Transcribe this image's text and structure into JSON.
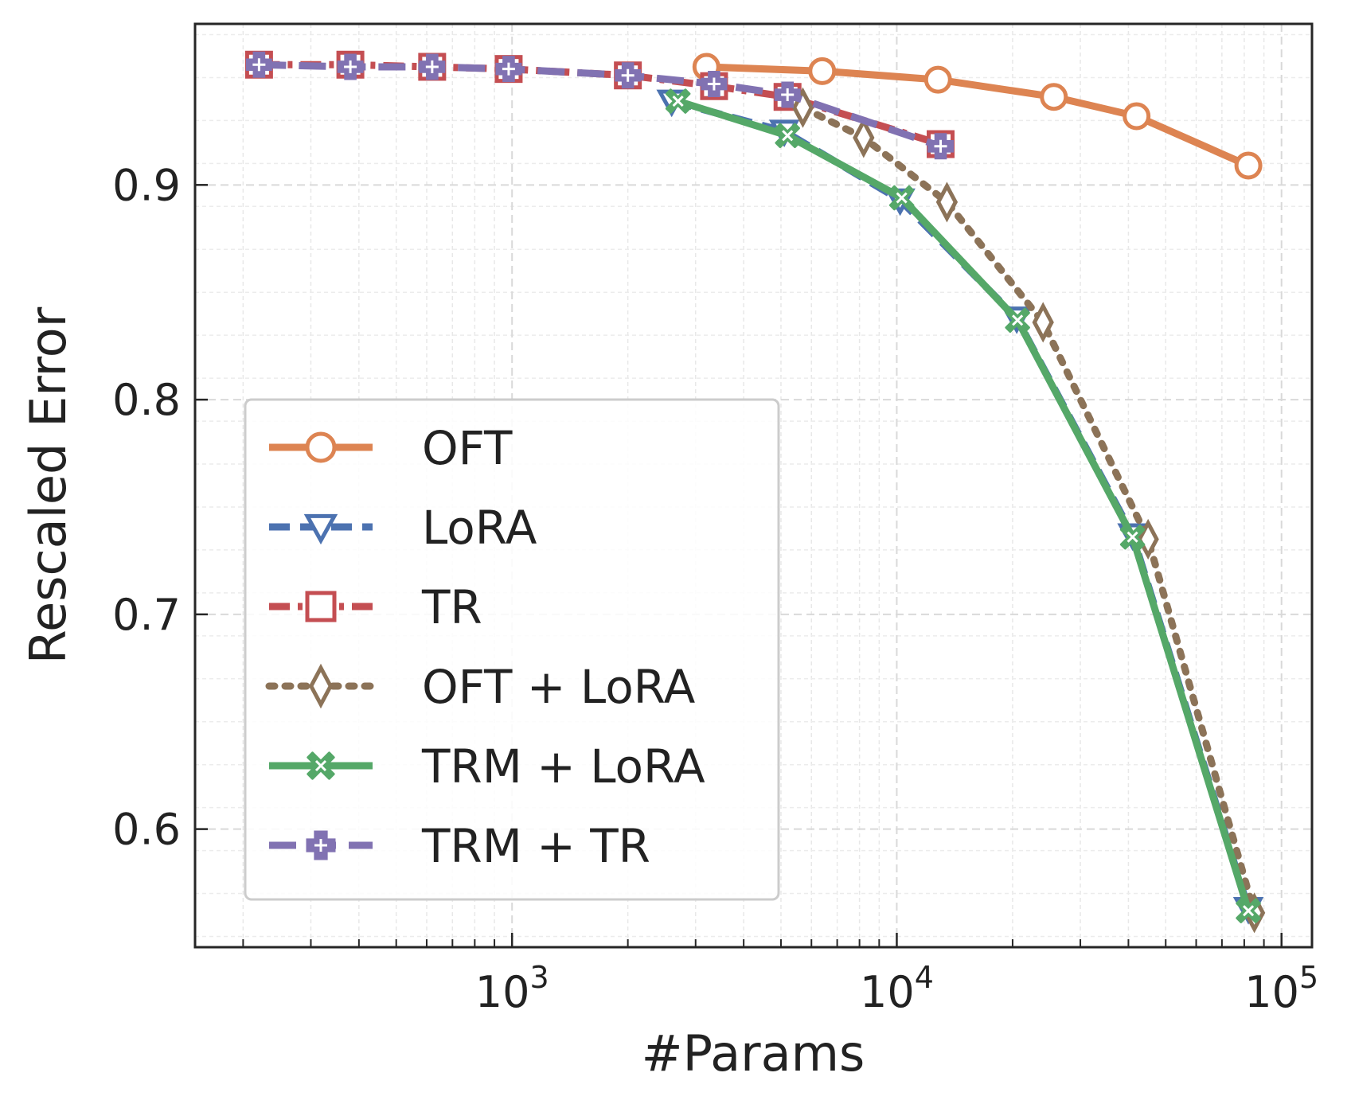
{
  "chart_data": {
    "type": "line",
    "xscale": "log",
    "xlabel": "#Params",
    "ylabel": "Rescaled Error",
    "xlim": [
      150,
      120000
    ],
    "ylim": [
      0.545,
      0.975
    ],
    "yticks": [
      {
        "value": 0.6,
        "label": "0.6"
      },
      {
        "value": 0.7,
        "label": "0.7"
      },
      {
        "value": 0.8,
        "label": "0.8"
      },
      {
        "value": 0.9,
        "label": "0.9"
      }
    ],
    "xticks": [
      {
        "value": 1000,
        "base": "10",
        "exp": "3"
      },
      {
        "value": 10000,
        "base": "10",
        "exp": "4"
      },
      {
        "value": 100000,
        "base": "10",
        "exp": "5"
      }
    ],
    "grid": true,
    "legend_position": "lower-left",
    "series": [
      {
        "name": "OFT",
        "color": "#dd8452",
        "dash": "solid",
        "marker": "circle",
        "x": [
          3200,
          6400,
          12800,
          25600,
          42000,
          82000
        ],
        "y": [
          0.955,
          0.953,
          0.949,
          0.941,
          0.932,
          0.909
        ]
      },
      {
        "name": "LoRA",
        "color": "#4c72b0",
        "dash": "dashed",
        "marker": "triangle-down",
        "x": [
          2600,
          5100,
          10200,
          20500,
          41000,
          82000
        ],
        "y": [
          0.939,
          0.925,
          0.893,
          0.838,
          0.737,
          0.563
        ]
      },
      {
        "name": "TR",
        "color": "#c44e52",
        "dash": "dashdot",
        "marker": "square",
        "x": [
          220,
          380,
          620,
          980,
          2000,
          3350,
          5200,
          13000
        ],
        "y": [
          0.956,
          0.956,
          0.955,
          0.954,
          0.951,
          0.946,
          0.941,
          0.919
        ]
      },
      {
        "name": "OFT + LoRA",
        "color": "#8c7358",
        "dash": "dotted",
        "marker": "diamond",
        "x": [
          5700,
          8200,
          13500,
          24000,
          45000,
          85000
        ],
        "y": [
          0.936,
          0.922,
          0.892,
          0.836,
          0.735,
          0.561
        ]
      },
      {
        "name": "TRM + LoRA",
        "color": "#55a868",
        "dash": "solid",
        "marker": "x-circle",
        "x": [
          2700,
          5200,
          10300,
          20600,
          41000,
          82000
        ],
        "y": [
          0.939,
          0.923,
          0.894,
          0.837,
          0.736,
          0.562
        ]
      },
      {
        "name": "TRM + TR",
        "color": "#8172b2",
        "dash": "longdash",
        "marker": "plus-square",
        "x": [
          220,
          380,
          620,
          980,
          2000,
          3350,
          5200,
          13000
        ],
        "y": [
          0.956,
          0.955,
          0.955,
          0.954,
          0.951,
          0.947,
          0.942,
          0.918
        ]
      }
    ]
  }
}
